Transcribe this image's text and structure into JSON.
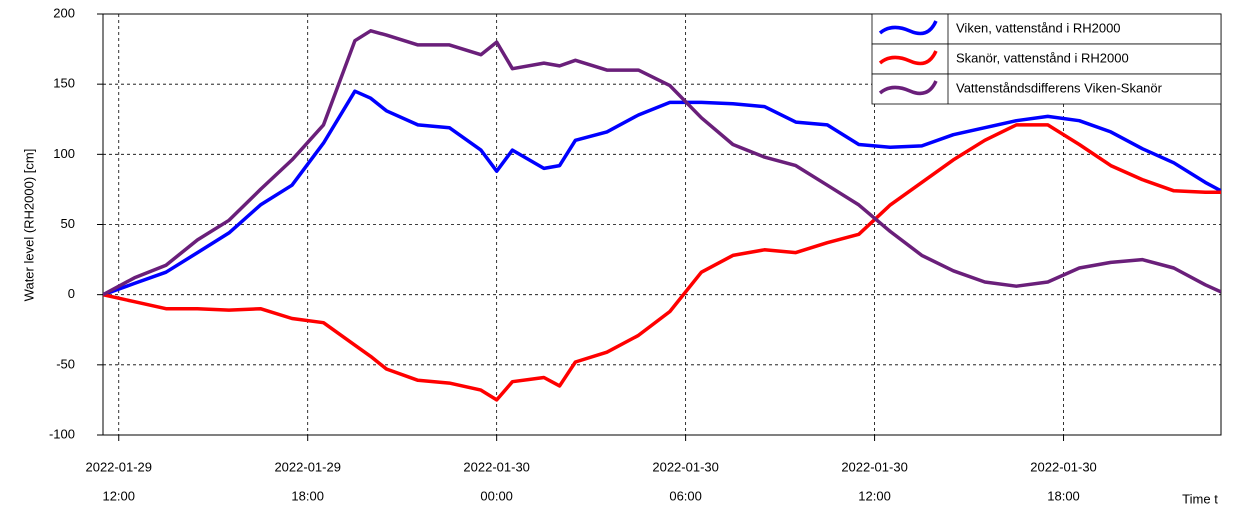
{
  "chart_data": {
    "type": "line",
    "y_label": "Water level (RH2000) [cm]",
    "x_label": "Time t",
    "x": [
      "2022-01-29T11:30",
      "2022-01-29T12:30",
      "2022-01-29T13:30",
      "2022-01-29T14:30",
      "2022-01-29T15:30",
      "2022-01-29T16:30",
      "2022-01-29T17:30",
      "2022-01-29T18:30",
      "2022-01-29T19:30",
      "2022-01-29T20:00",
      "2022-01-29T20:30",
      "2022-01-29T21:30",
      "2022-01-29T22:30",
      "2022-01-29T23:30",
      "2022-01-30T00:00",
      "2022-01-30T00:30",
      "2022-01-30T01:30",
      "2022-01-30T02:00",
      "2022-01-30T02:30",
      "2022-01-30T03:30",
      "2022-01-30T04:30",
      "2022-01-30T05:30",
      "2022-01-30T06:30",
      "2022-01-30T07:30",
      "2022-01-30T08:30",
      "2022-01-30T09:30",
      "2022-01-30T10:30",
      "2022-01-30T11:30",
      "2022-01-30T12:30",
      "2022-01-30T13:30",
      "2022-01-30T14:30",
      "2022-01-30T15:30",
      "2022-01-30T16:30",
      "2022-01-30T17:30",
      "2022-01-30T18:30",
      "2022-01-30T19:30",
      "2022-01-30T20:30",
      "2022-01-30T21:30",
      "2022-01-30T22:30",
      "2022-01-30T23:00"
    ],
    "series": [
      {
        "name": "Viken, vattenstånd i RH2000",
        "color": "#0000ff",
        "values": [
          0,
          8,
          16,
          30,
          44,
          64,
          78,
          108,
          145,
          140,
          131,
          121,
          119,
          103,
          88,
          103,
          90,
          92,
          110,
          116,
          128,
          137,
          137,
          136,
          134,
          123,
          121,
          107,
          105,
          106,
          114,
          119,
          124,
          127,
          124,
          116,
          104,
          94,
          80,
          74
        ]
      },
      {
        "name": "Skanör, vattenstånd i RH2000",
        "color": "#ff0000",
        "values": [
          0,
          -5,
          -10,
          -10,
          -11,
          -10,
          -17,
          -20,
          -36,
          -44,
          -53,
          -61,
          -63,
          -68,
          -75,
          -62,
          -59,
          -65,
          -48,
          -41,
          -29,
          -12,
          16,
          28,
          32,
          30,
          37,
          43,
          64,
          80,
          96,
          110,
          121,
          121,
          107,
          92,
          82,
          74,
          73,
          73
        ]
      },
      {
        "name": "Vattenståndsdifferens Viken-Skanör",
        "color": "#6a1f7a",
        "values": [
          0,
          12,
          21,
          39,
          53,
          75,
          96,
          121,
          181,
          188,
          185,
          178,
          178,
          171,
          180,
          161,
          165,
          163,
          167,
          160,
          160,
          149,
          126,
          107,
          98,
          92,
          78,
          64,
          45,
          28,
          17,
          9,
          6,
          9,
          19,
          23,
          25,
          19,
          7,
          2
        ]
      }
    ],
    "xlim": [
      "2022-01-29T11:30",
      "2022-01-30T23:00"
    ],
    "xticks": [
      {
        "value": "2022-01-29T12:00",
        "label": [
          "2022-01-29",
          "12:00"
        ]
      },
      {
        "value": "2022-01-29T18:00",
        "label": [
          "2022-01-29",
          "18:00"
        ]
      },
      {
        "value": "2022-01-30T00:00",
        "label": [
          "2022-01-30",
          "00:00"
        ]
      },
      {
        "value": "2022-01-30T06:00",
        "label": [
          "2022-01-30",
          "06:00"
        ]
      },
      {
        "value": "2022-01-30T12:00",
        "label": [
          "2022-01-30",
          "12:00"
        ]
      },
      {
        "value": "2022-01-30T18:00",
        "label": [
          "2022-01-30",
          "18:00"
        ]
      }
    ],
    "ylim": [
      -100,
      200
    ],
    "yticks": [
      -100,
      -50,
      0,
      50,
      100,
      150,
      200
    ],
    "grid": true,
    "legend": "upper right"
  }
}
